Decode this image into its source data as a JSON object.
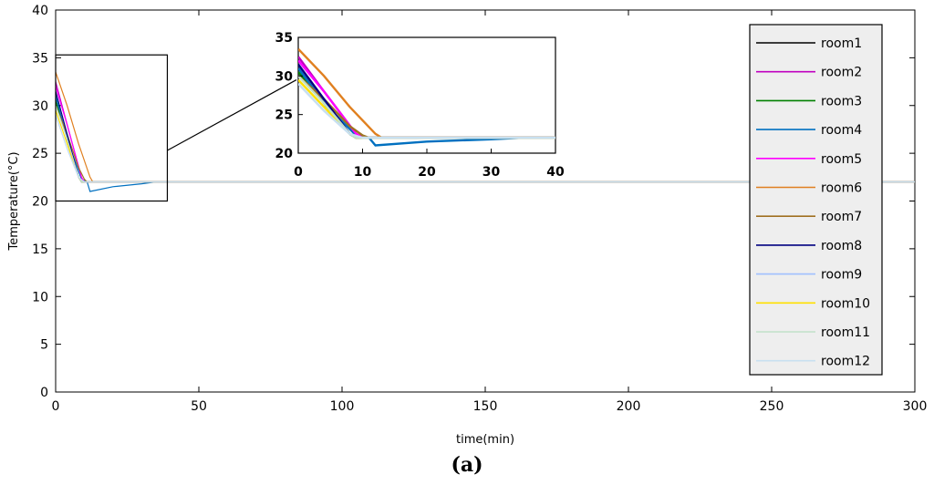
{
  "caption": "(a)",
  "chart_data": {
    "type": "line",
    "xlabel": "time(min)",
    "ylabel": "Temperature(°C)",
    "xlim": [
      0,
      300
    ],
    "ylim": [
      0,
      40
    ],
    "xticks": [
      0,
      50,
      100,
      150,
      200,
      250,
      300
    ],
    "yticks": [
      0,
      5,
      10,
      15,
      20,
      25,
      30,
      35,
      40
    ],
    "grid": false,
    "legend_position": "right",
    "zoom_box": {
      "xlim": [
        0,
        39
      ],
      "ylim": [
        20,
        35.3
      ]
    },
    "inset": {
      "xlim": [
        0,
        40
      ],
      "ylim": [
        20,
        35
      ],
      "xticks": [
        0,
        10,
        20,
        30,
        40
      ],
      "yticks": [
        20,
        25,
        30,
        35
      ]
    },
    "series": [
      {
        "name": "room1",
        "color": "#000000",
        "x": [
          0,
          4,
          8,
          9,
          300
        ],
        "y": [
          31,
          26.5,
          22.5,
          22,
          22
        ]
      },
      {
        "name": "room2",
        "color": "#c000c0",
        "x": [
          0,
          4,
          9,
          10,
          300
        ],
        "y": [
          32.5,
          28,
          22.5,
          22,
          22
        ]
      },
      {
        "name": "room3",
        "color": "#008000",
        "x": [
          0,
          4,
          8,
          9,
          300
        ],
        "y": [
          30.5,
          26.5,
          22.5,
          22,
          22
        ]
      },
      {
        "name": "room4",
        "color": "#0070c0",
        "x": [
          0,
          4,
          9,
          11,
          12,
          20,
          30,
          35,
          300
        ],
        "y": [
          31,
          26.5,
          22.3,
          22,
          21,
          21.5,
          21.8,
          22,
          22
        ]
      },
      {
        "name": "room5",
        "color": "#ff00ff",
        "x": [
          0,
          4,
          9,
          10,
          300
        ],
        "y": [
          32,
          28,
          22.5,
          22,
          22
        ]
      },
      {
        "name": "room6",
        "color": "#e08020",
        "x": [
          0,
          4,
          8,
          12,
          13,
          300
        ],
        "y": [
          33.5,
          30,
          26,
          22.5,
          22,
          22
        ]
      },
      {
        "name": "room7",
        "color": "#a07020",
        "x": [
          0,
          4,
          8,
          10,
          11,
          300
        ],
        "y": [
          30,
          27,
          23.5,
          22.3,
          22,
          22
        ]
      },
      {
        "name": "room8",
        "color": "#000080",
        "x": [
          0,
          4,
          8,
          9,
          300
        ],
        "y": [
          31.5,
          27,
          22.5,
          22,
          22
        ]
      },
      {
        "name": "room9",
        "color": "#a0c0ff",
        "x": [
          0,
          4,
          8,
          9,
          300
        ],
        "y": [
          29,
          25.5,
          22.5,
          22,
          22
        ]
      },
      {
        "name": "room10",
        "color": "#ffe000",
        "x": [
          0,
          4,
          8,
          9,
          300
        ],
        "y": [
          29.5,
          26,
          22.5,
          22,
          22
        ]
      },
      {
        "name": "room11",
        "color": "#c0e0c8",
        "x": [
          0,
          4,
          8,
          9,
          300
        ],
        "y": [
          30,
          26.5,
          22.5,
          22,
          22
        ]
      },
      {
        "name": "room12",
        "color": "#c8e0f0",
        "x": [
          0,
          4,
          8,
          10,
          300
        ],
        "y": [
          29,
          25.5,
          22.5,
          22,
          22
        ]
      }
    ]
  }
}
